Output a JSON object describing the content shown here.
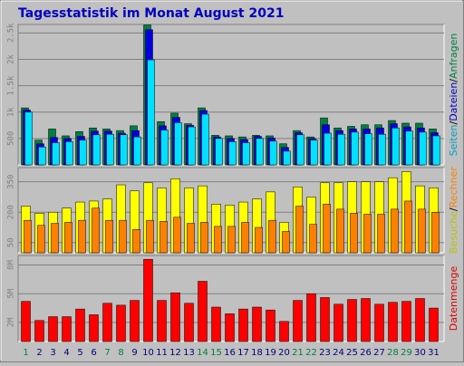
{
  "title": "Tagesstatistik im Monat August 2021",
  "title_color": "#0000c0",
  "chart_data": [
    {
      "type": "bar",
      "ylim": [
        0,
        2660
      ],
      "yticks": [
        {
          "value": 500,
          "label": "500"
        },
        {
          "value": 1000,
          "label": "1k"
        },
        {
          "value": 1500,
          "label": "1.5k"
        },
        {
          "value": 2000,
          "label": "2k"
        },
        {
          "value": 2500,
          "label": "2.5k"
        }
      ],
      "grid": true,
      "y_label": [
        {
          "text": "Seiten",
          "color": "#00a0c0"
        },
        {
          "text": "/",
          "color": "#000000"
        },
        {
          "text": "Dateien",
          "color": "#0000c0"
        },
        {
          "text": "/",
          "color": "#000000"
        },
        {
          "text": "Anfragen",
          "color": "#008040"
        }
      ],
      "series": [
        {
          "name": "Anfragen",
          "color": "#008040",
          "values": [
            1080,
            470,
            680,
            550,
            630,
            700,
            680,
            650,
            740,
            2650,
            820,
            980,
            780,
            1080,
            560,
            550,
            530,
            560,
            550,
            400,
            650,
            530,
            890,
            700,
            730,
            760,
            760,
            840,
            790,
            790,
            680
          ]
        },
        {
          "name": "Dateien",
          "color": "#0000e0",
          "values": [
            1040,
            400,
            520,
            500,
            540,
            640,
            640,
            600,
            650,
            2560,
            740,
            900,
            750,
            1030,
            530,
            500,
            480,
            540,
            510,
            330,
            610,
            500,
            760,
            650,
            680,
            680,
            700,
            780,
            720,
            700,
            610
          ]
        },
        {
          "name": "Seiten",
          "color": "#00e0ff",
          "values": [
            1000,
            340,
            420,
            440,
            470,
            570,
            580,
            570,
            530,
            1990,
            660,
            800,
            720,
            960,
            500,
            440,
            420,
            500,
            450,
            260,
            570,
            470,
            600,
            580,
            620,
            590,
            580,
            700,
            640,
            620,
            550
          ]
        }
      ]
    },
    {
      "type": "bar",
      "ylim": [
        0,
        420
      ],
      "yticks": [
        50,
        200,
        350
      ],
      "grid": true,
      "y_label": [
        {
          "text": "Besuche",
          "color": "#c0c000"
        },
        {
          "text": "/",
          "color": "#000000"
        },
        {
          "text": "Rechner",
          "color": "#ff8000"
        }
      ],
      "series": [
        {
          "name": "Besuche",
          "color": "#ffff00",
          "values": [
            230,
            195,
            200,
            220,
            250,
            255,
            265,
            335,
            305,
            345,
            320,
            365,
            320,
            330,
            240,
            235,
            250,
            265,
            300,
            150,
            325,
            275,
            345,
            345,
            350,
            350,
            350,
            370,
            400,
            330,
            320
          ]
        },
        {
          "name": "Rechner",
          "color": "#ff8000",
          "values": [
            160,
            135,
            145,
            150,
            160,
            220,
            160,
            160,
            115,
            160,
            155,
            175,
            145,
            150,
            130,
            130,
            150,
            125,
            160,
            105,
            230,
            140,
            240,
            215,
            195,
            190,
            190,
            215,
            255,
            215,
            200
          ]
        }
      ]
    },
    {
      "type": "bar",
      "ylim": [
        0,
        9
      ],
      "yticks": [
        {
          "value": 2,
          "label": "2M"
        },
        {
          "value": 5,
          "label": "5M"
        },
        {
          "value": 8,
          "label": "8M"
        }
      ],
      "grid": true,
      "y_label": [
        {
          "text": "Datenmenge",
          "color": "#e00000"
        }
      ],
      "categories": [
        "1",
        "2",
        "3",
        "4",
        "5",
        "6",
        "7",
        "8",
        "9",
        "10",
        "11",
        "12",
        "13",
        "14",
        "15",
        "16",
        "17",
        "18",
        "19",
        "20",
        "21",
        "22",
        "23",
        "24",
        "25",
        "26",
        "27",
        "28",
        "29",
        "30",
        "31"
      ],
      "category_colors": [
        "#008040",
        "#000080",
        "#000080",
        "#000080",
        "#000080",
        "#000080",
        "#008040",
        "#008040",
        "#000080",
        "#000080",
        "#000080",
        "#000080",
        "#000080",
        "#008040",
        "#008040",
        "#000080",
        "#000080",
        "#000080",
        "#000080",
        "#000080",
        "#008040",
        "#008040",
        "#000080",
        "#000080",
        "#000080",
        "#000080",
        "#000080",
        "#008040",
        "#008040",
        "#000080",
        "#000080"
      ],
      "series": [
        {
          "name": "Datenmenge",
          "color": "#ff0000",
          "values": [
            4.2,
            2.2,
            2.6,
            2.6,
            3.4,
            2.8,
            4.0,
            3.8,
            4.3,
            8.6,
            4.3,
            5.1,
            4.0,
            6.3,
            3.6,
            2.9,
            3.4,
            3.6,
            3.3,
            2.1,
            4.3,
            5.0,
            4.6,
            3.9,
            4.4,
            4.5,
            3.9,
            4.1,
            4.2,
            4.5,
            3.5
          ]
        }
      ]
    }
  ]
}
